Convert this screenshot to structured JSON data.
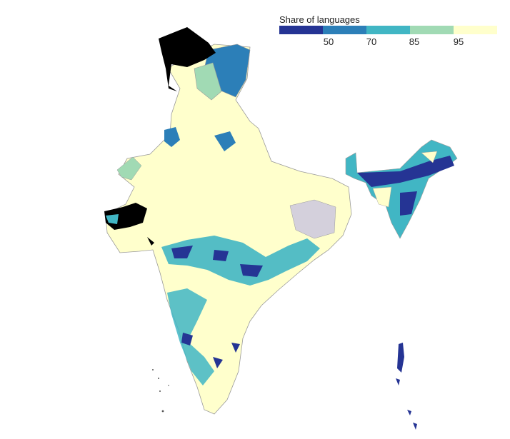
{
  "legend": {
    "title": "Share of languages",
    "bins": [
      {
        "color": "#253494"
      },
      {
        "color": "#2c7fb8"
      },
      {
        "color": "#41b6c4"
      },
      {
        "color": "#a1dab4"
      },
      {
        "color": "#ffffcc"
      }
    ],
    "ticks": [
      "50",
      "70",
      "85",
      "95"
    ]
  },
  "map": {
    "nodata_color": "#000000",
    "missing_color": "#d4d0dc",
    "border_color": "#9a9a9a"
  }
}
